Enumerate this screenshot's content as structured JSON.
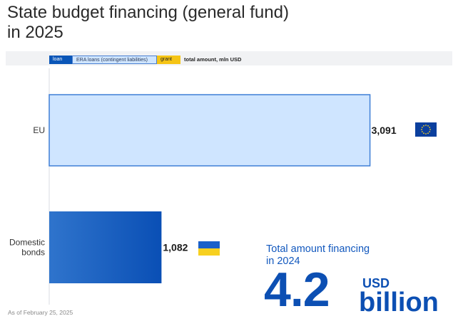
{
  "title": "State budget financing (general fund) in 2025",
  "legend": {
    "loan": "loan",
    "era": "ERA loans (contingent liabilities)",
    "grant": "grant",
    "unit": "total amount, mln USD"
  },
  "chart_data": {
    "type": "bar",
    "orientation": "horizontal",
    "categories": [
      "EU",
      "Domestic bonds"
    ],
    "values": [
      3091,
      1082
    ],
    "value_labels": [
      "3,091",
      "1,082"
    ],
    "bar_types": [
      "ERA loans (contingent liabilities)",
      "loan"
    ],
    "xlim": [
      0,
      3300
    ],
    "unit": "total amount, mln USD"
  },
  "colors": {
    "loan": "#0a56b8",
    "era_fill": "#cfe5ff",
    "era_stroke": "#3f7fd6",
    "grant": "#f5c415"
  },
  "flags": [
    "eu-flag-icon",
    "ukraine-flag-icon"
  ],
  "summary": {
    "label": "Total amount financing in 2024",
    "value": "4.2",
    "currency": "USD",
    "scale": "billion"
  },
  "footnote": "As of February 25, 2025"
}
